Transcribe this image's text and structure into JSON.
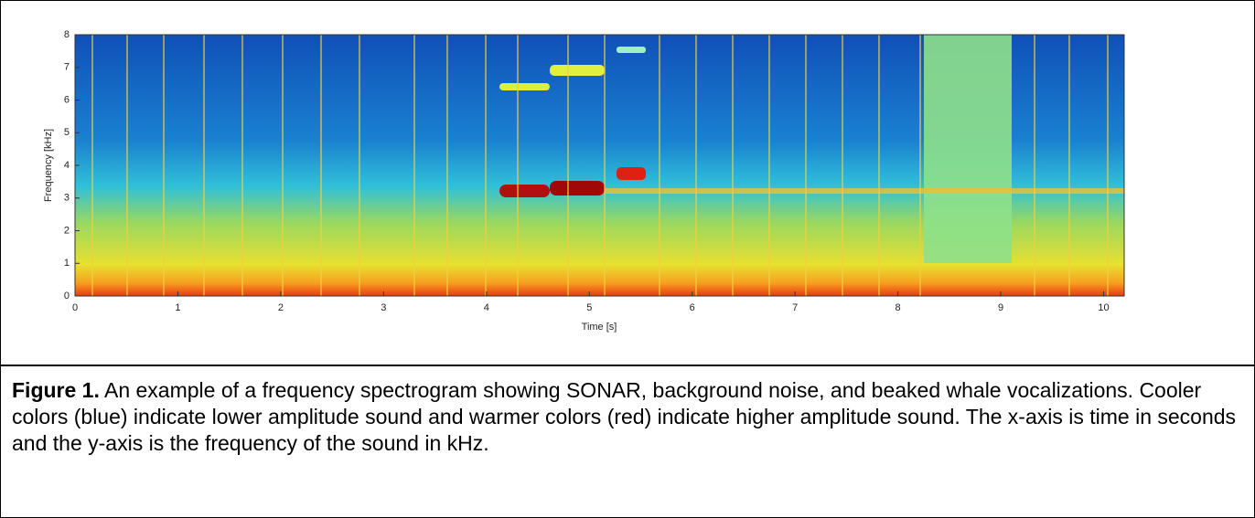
{
  "chart_data": {
    "type": "spectrogram",
    "xlabel": "Time [s]",
    "ylabel": "Frequency [kHz]",
    "xlim": [
      0,
      10.2
    ],
    "ylim": [
      0,
      8
    ],
    "xticks": [
      0,
      1,
      2,
      3,
      4,
      5,
      6,
      7,
      8,
      9,
      10
    ],
    "yticks": [
      0,
      1,
      2,
      3,
      4,
      5,
      6,
      7,
      8
    ]
  },
  "caption": {
    "label": "Figure 1.",
    "text": " An example of a frequency spectrogram showing SONAR, background noise, and beaked whale vocalizations. Cooler colors (blue) indicate lower amplitude sound and warmer colors (red) indicate higher amplitude sound. The x-axis is time in seconds and the y-axis is the frequency of the sound in kHz."
  }
}
